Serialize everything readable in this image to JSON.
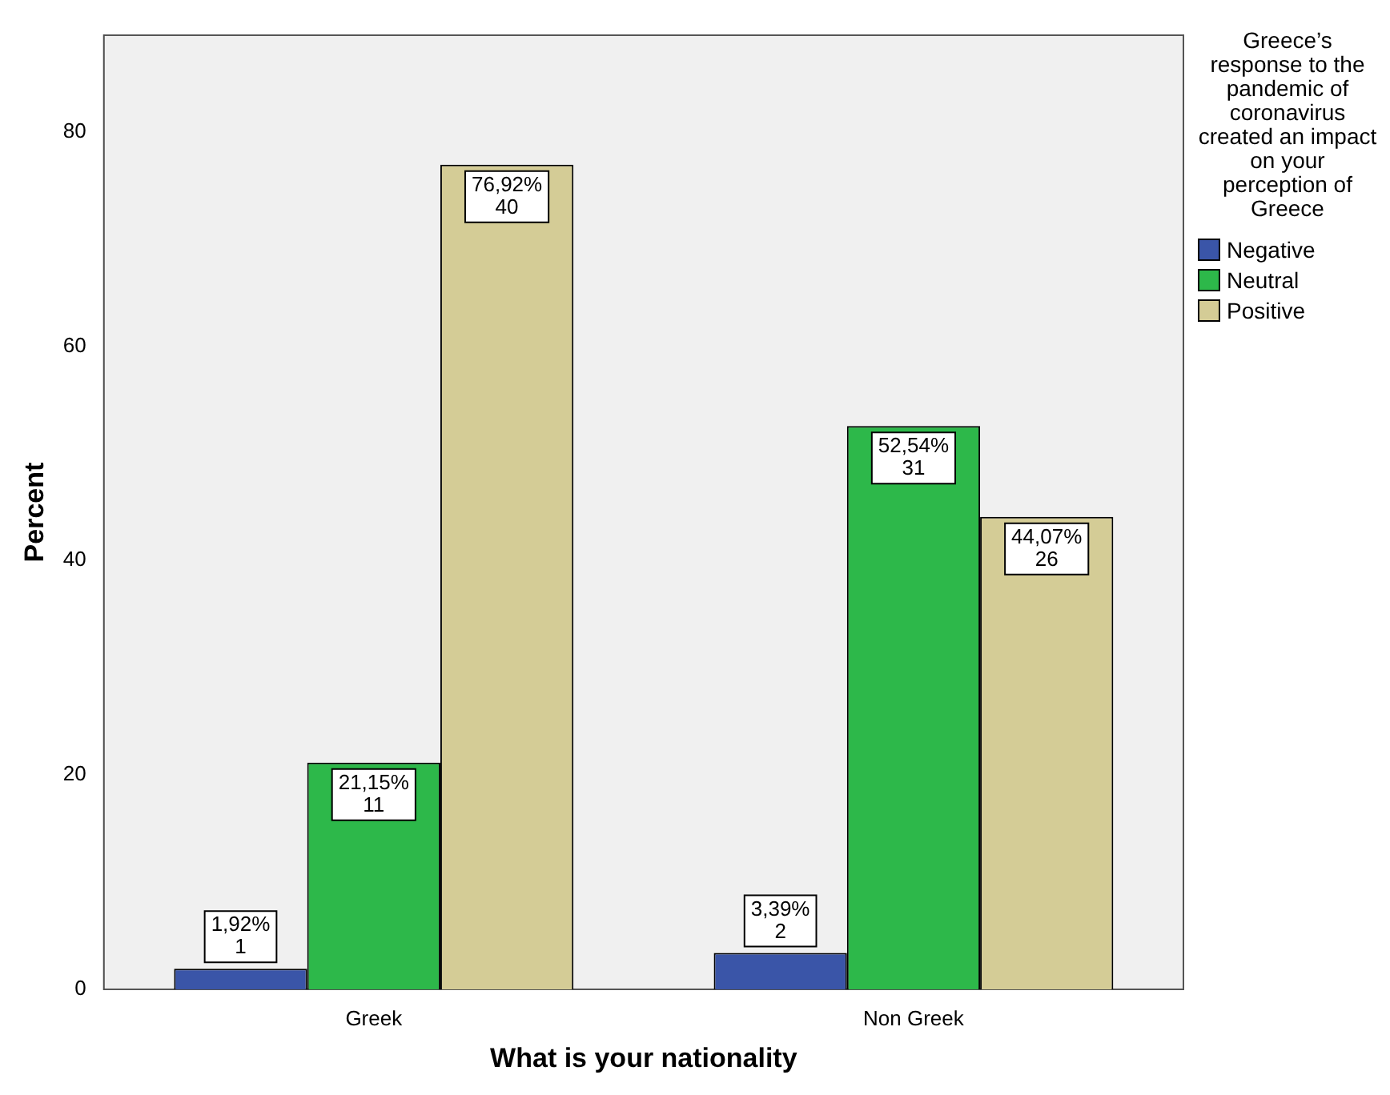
{
  "chart_data": {
    "type": "bar",
    "xlabel": "What is your nationality",
    "ylabel": "Percent",
    "legend_title": "Greece’s response to the pandemic of coronavirus created an impact on your perception of Greece",
    "categories": [
      "Greek",
      "Non Greek"
    ],
    "series": [
      {
        "name": "Negative",
        "color": "#3a55a8",
        "values": [
          1.92,
          3.39
        ],
        "value_labels": [
          "1,92%\n1",
          "3,39%\n2"
        ]
      },
      {
        "name": "Neutral",
        "color": "#2db84a",
        "values": [
          21.15,
          52.54
        ],
        "value_labels": [
          "21,15%\n11",
          "52,54%\n31"
        ]
      },
      {
        "name": "Positive",
        "color": "#d4cc96",
        "values": [
          76.92,
          44.07
        ],
        "value_labels": [
          "76,92%\n40",
          "44,07%\n26"
        ]
      }
    ],
    "ylim": [
      0,
      89
    ],
    "yticks": [
      0,
      20,
      40,
      60,
      80
    ],
    "grid": false,
    "legend": "right"
  }
}
